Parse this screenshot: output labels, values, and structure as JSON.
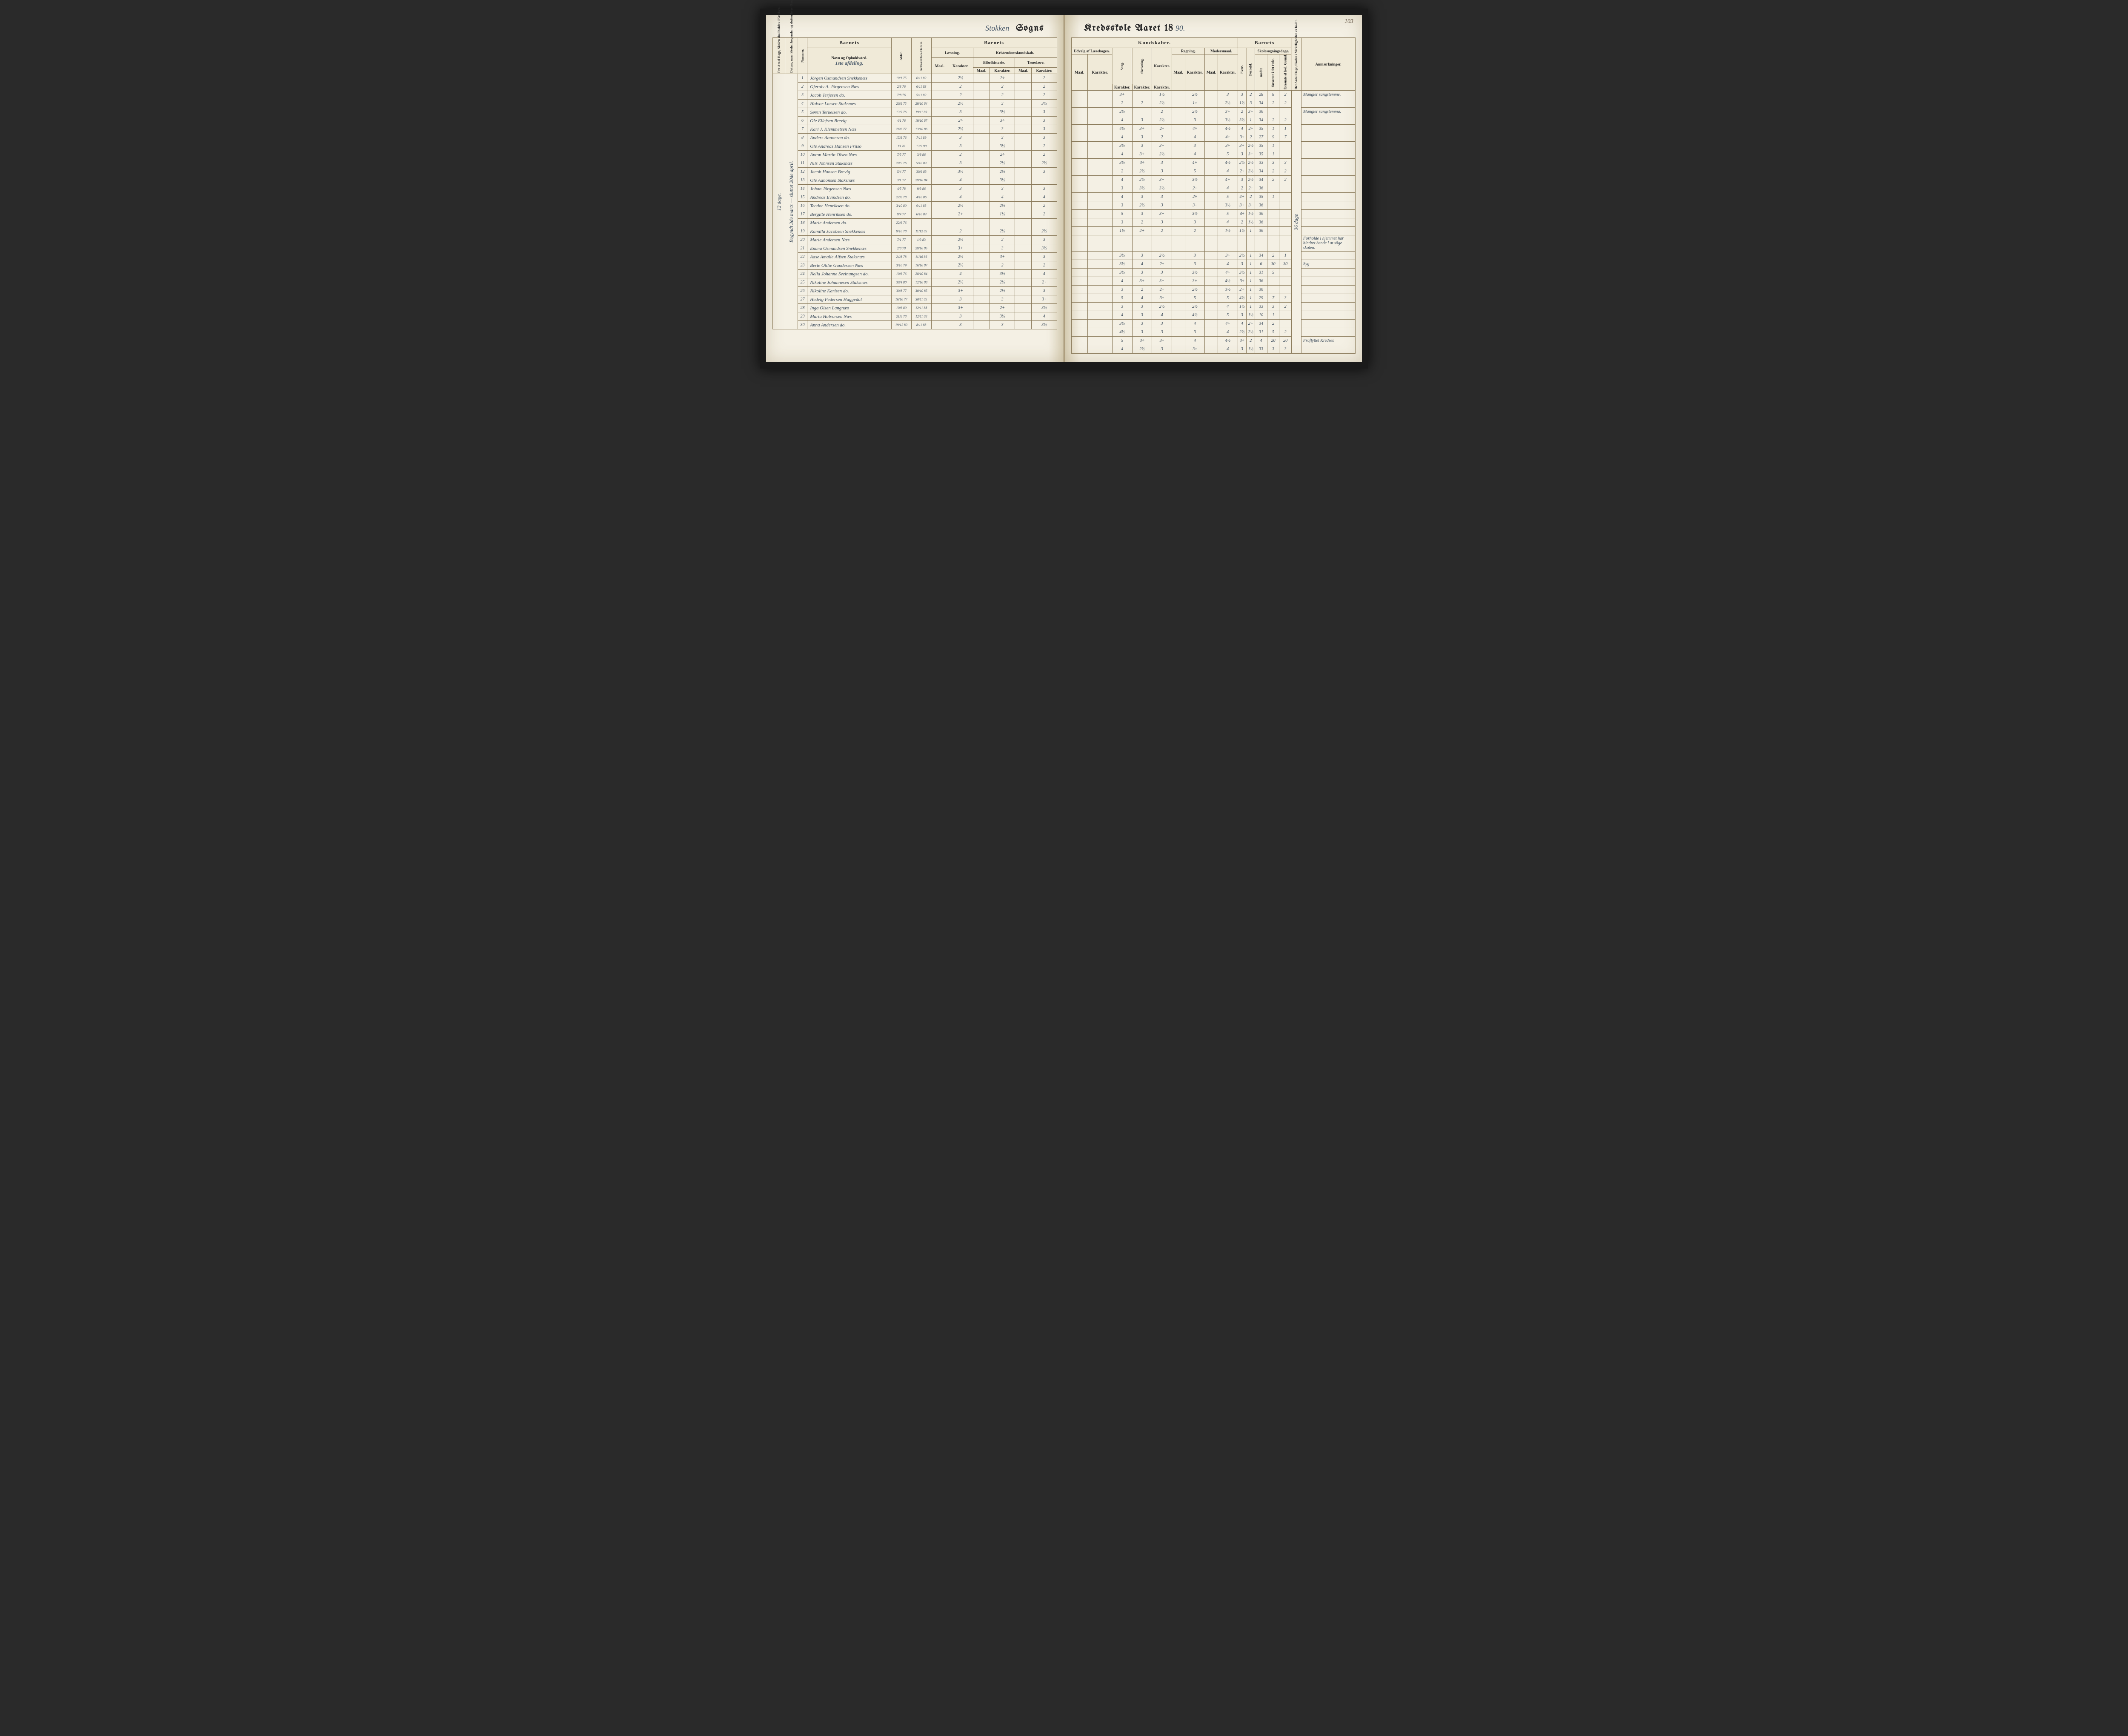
{
  "page_number": "103",
  "title_left_hand": "Stokken",
  "title_left_print": "Sogns",
  "title_right_print": "Kredsskole Aaret 18",
  "title_right_hand": "90.",
  "left_margin_text": "Begyndt 3de marts — sluttet 20de april.",
  "left_margin_text2": "12 dage.",
  "right_margin_text": "36 dage",
  "afdeling_label": "1ste afdeling.",
  "headers": {
    "antal_dage": "Det Antal Dage, Skolen skal holdes i Kredsen.",
    "datum_omgang": "Datum, naar Skolen begynder og slutter hver Omgang.",
    "nummer": "Nummer.",
    "barnets": "Barnets",
    "navn": "Navn og Opholdssted.",
    "alder": "Alder.",
    "indtr": "Indtrædelses-Datum.",
    "laesning": "Læsning.",
    "krist": "Kristendomskundskab.",
    "maal": "Maal.",
    "karakter": "Karakter.",
    "bibel": "Bibelhistorie.",
    "troes": "Troeslære.",
    "kundskaber": "Kundskaber.",
    "udvalg": "Udvalg af Læsebogen.",
    "sang": "Sang.",
    "skriv": "Skrivning.",
    "regning": "Regning.",
    "modersmaal": "Modersmaal.",
    "skolesogn": "Skolesøgningsdage.",
    "evne": "Evne.",
    "forhold": "Forhold.",
    "modte": "mødte",
    "forsomte_hele": "forsømte i det Hele.",
    "forsomte_lovl": "forsømte af lovl. Grund.",
    "antal_virk": "Det Antal Dage, Skolen i Virkeligheden er holdt.",
    "anm": "Anmærkninger."
  },
  "rows": [
    {
      "n": "1",
      "name": "Jörgen Osmundsen Snekkenæs",
      "al": "10/1 75",
      "ind": "6/11 82",
      "l_m": "",
      "l_k": "2½",
      "b_m": "",
      "b_k": "2÷",
      "t_m": "",
      "t_k": "2",
      "u_m": "",
      "u_k": "",
      "sa": "3+",
      "sk": "",
      "rk": "1½",
      "r_m": "",
      "r_k": "2½",
      "mm": "",
      "mk": "3",
      "ev": "3",
      "fo": "2",
      "md": "28",
      "f1": "8",
      "f2": "2",
      "anm": "Mangler sangstemme."
    },
    {
      "n": "2",
      "name": "Gjerulv A. Jörgensen Næs",
      "al": "2/3 76",
      "ind": "6/11 83",
      "l_m": "",
      "l_k": "2",
      "b_m": "",
      "b_k": "2",
      "t_m": "",
      "t_k": "2",
      "u_m": "",
      "u_k": "",
      "sa": "2",
      "sk": "2",
      "rk": "2½",
      "r_m": "",
      "r_k": "1÷",
      "mm": "",
      "mk": "2½",
      "ev": "1½",
      "fo": "3",
      "md": "34",
      "f1": "2",
      "f2": "2",
      "anm": ""
    },
    {
      "n": "3",
      "name": "Jacob Terjesen   do.",
      "al": "7/8 76",
      "ind": "5/11 82",
      "l_m": "",
      "l_k": "2",
      "b_m": "",
      "b_k": "2",
      "t_m": "",
      "t_k": "2",
      "u_m": "",
      "u_k": "",
      "sa": "2½",
      "sk": "",
      "rk": "2",
      "r_m": "",
      "r_k": "2½",
      "mm": "",
      "mk": "3+",
      "ev": "2",
      "fo": "3+",
      "md": "36",
      "f1": "",
      "f2": "",
      "anm": "Mangler sangstemma."
    },
    {
      "n": "4",
      "name": "Halvor Larsen Staksnæs",
      "al": "20/8 75",
      "ind": "29/10 84",
      "l_m": "",
      "l_k": "2½",
      "b_m": "",
      "b_k": "3",
      "t_m": "",
      "t_k": "3½",
      "u_m": "",
      "u_k": "",
      "sa": "4",
      "sk": "3",
      "rk": "2½",
      "r_m": "",
      "r_k": "3",
      "mm": "",
      "mk": "3½",
      "ev": "3½",
      "fo": "1",
      "md": "34",
      "f1": "2",
      "f2": "2",
      "anm": ""
    },
    {
      "n": "5",
      "name": "Søren Terkelsen   do.",
      "al": "13/3 76",
      "ind": "19/11 83",
      "l_m": "",
      "l_k": "3",
      "b_m": "",
      "b_k": "3½",
      "t_m": "",
      "t_k": "3",
      "u_m": "",
      "u_k": "",
      "sa": "4½",
      "sk": "3+",
      "rk": "2÷",
      "r_m": "",
      "r_k": "4÷",
      "mm": "",
      "mk": "4½",
      "ev": "4",
      "fo": "2÷",
      "md": "35",
      "f1": "1",
      "f2": "1",
      "anm": ""
    },
    {
      "n": "6",
      "name": "Ole Ellefsen Brevig",
      "al": "4/1 76",
      "ind": "19/10 87",
      "l_m": "",
      "l_k": "2÷",
      "b_m": "",
      "b_k": "3÷",
      "t_m": "",
      "t_k": "3",
      "u_m": "",
      "u_k": "",
      "sa": "4",
      "sk": "3",
      "rk": "2",
      "r_m": "",
      "r_k": "4",
      "mm": "",
      "mk": "4÷",
      "ev": "3÷",
      "fo": "2",
      "md": "27",
      "f1": "9",
      "f2": "7",
      "anm": ""
    },
    {
      "n": "7",
      "name": "Karl J. Klemmetsen Næs",
      "al": "26/6 77",
      "ind": "13/10 86",
      "l_m": "",
      "l_k": "2½",
      "b_m": "",
      "b_k": "3",
      "t_m": "",
      "t_k": "3",
      "u_m": "",
      "u_k": "",
      "sa": "3½",
      "sk": "3",
      "rk": "3+",
      "r_m": "",
      "r_k": "3",
      "mm": "",
      "mk": "3÷",
      "ev": "3+",
      "fo": "2½",
      "md": "35",
      "f1": "1",
      "f2": "",
      "anm": ""
    },
    {
      "n": "8",
      "name": "Anders Aanonsen   do.",
      "al": "15/8 76",
      "ind": "7/11 89",
      "l_m": "",
      "l_k": "3",
      "b_m": "",
      "b_k": "3",
      "t_m": "",
      "t_k": "3",
      "u_m": "",
      "u_k": "",
      "sa": "4",
      "sk": "3+",
      "rk": "2½",
      "r_m": "",
      "r_k": "4",
      "mm": "",
      "mk": "5",
      "ev": "3",
      "fo": "3+",
      "md": "35",
      "f1": "1",
      "f2": "",
      "anm": ""
    },
    {
      "n": "9",
      "name": "Ole Andreas Hansen Frilsö",
      "al": "13 76",
      "ind": "13/5 90",
      "l_m": "",
      "l_k": "3",
      "b_m": "",
      "b_k": "3½",
      "t_m": "",
      "t_k": "2",
      "u_m": "",
      "u_k": "",
      "sa": "3½",
      "sk": "3÷",
      "rk": "3",
      "r_m": "",
      "r_k": "4+",
      "mm": "",
      "mk": "4½",
      "ev": "2½",
      "fo": "2½",
      "md": "33",
      "f1": "3",
      "f2": "3",
      "anm": ""
    },
    {
      "n": "10",
      "name": "Anton Martin Olsen Næs",
      "al": "7/5 77",
      "ind": "3/8 86",
      "l_m": "",
      "l_k": "2",
      "b_m": "",
      "b_k": "2÷",
      "t_m": "",
      "t_k": "2",
      "u_m": "",
      "u_k": "",
      "sa": "2",
      "sk": "2½",
      "rk": "3",
      "r_m": "",
      "r_k": "5",
      "mm": "",
      "mk": "4",
      "ev": "2÷",
      "fo": "2½",
      "md": "34",
      "f1": "2",
      "f2": "2",
      "anm": ""
    },
    {
      "n": "11",
      "name": "Nils Johnsen Staksnæs",
      "al": "20/2 76",
      "ind": "5/10 83",
      "l_m": "",
      "l_k": "3",
      "b_m": "",
      "b_k": "2½",
      "t_m": "",
      "t_k": "2½",
      "u_m": "",
      "u_k": "",
      "sa": "4",
      "sk": "2½",
      "rk": "3+",
      "r_m": "",
      "r_k": "3½",
      "mm": "",
      "mk": "4+",
      "ev": "3",
      "fo": "2½",
      "md": "34",
      "f1": "2",
      "f2": "2",
      "anm": ""
    },
    {
      "n": "12",
      "name": "Jacob Hansen Brevig",
      "al": "5/4 77",
      "ind": "30/6 83",
      "l_m": "",
      "l_k": "3½",
      "b_m": "",
      "b_k": "2½",
      "t_m": "",
      "t_k": "3",
      "u_m": "",
      "u_k": "",
      "sa": "3",
      "sk": "3½",
      "rk": "3½",
      "r_m": "",
      "r_k": "2÷",
      "mm": "",
      "mk": "4",
      "ev": "2",
      "fo": "2÷",
      "md": "36",
      "f1": "",
      "f2": "",
      "anm": ""
    },
    {
      "n": "13",
      "name": "Ole Aanonsen Staksnæs",
      "al": "3/1 77",
      "ind": "29/10 84",
      "l_m": "",
      "l_k": "4",
      "b_m": "",
      "b_k": "3½",
      "t_m": "",
      "t_k": "",
      "u_m": "",
      "u_k": "",
      "sa": "4",
      "sk": "3",
      "rk": "3",
      "r_m": "",
      "r_k": "2÷",
      "mm": "",
      "mk": "5",
      "ev": "4+",
      "fo": "2",
      "md": "35",
      "f1": "1",
      "f2": "",
      "anm": ""
    },
    {
      "n": "14",
      "name": "Johan Jörgensen Næs",
      "al": "4/5 78",
      "ind": "9/3 86",
      "l_m": "",
      "l_k": "3",
      "b_m": "",
      "b_k": "3",
      "t_m": "",
      "t_k": "3",
      "u_m": "",
      "u_k": "",
      "sa": "3",
      "sk": "2½",
      "rk": "3",
      "r_m": "",
      "r_k": "3÷",
      "mm": "",
      "mk": "3½",
      "ev": "3+",
      "fo": "3÷",
      "md": "36",
      "f1": "",
      "f2": "",
      "anm": ""
    },
    {
      "n": "15",
      "name": "Andreas Evindsen   do.",
      "al": "27/6 78",
      "ind": "4/10 86",
      "l_m": "",
      "l_k": "4",
      "b_m": "",
      "b_k": "4",
      "t_m": "",
      "t_k": "4",
      "u_m": "",
      "u_k": "",
      "sa": "5",
      "sk": "3",
      "rk": "3+",
      "r_m": "",
      "r_k": "3½",
      "mm": "",
      "mk": "5",
      "ev": "4÷",
      "fo": "1½",
      "md": "36",
      "f1": "",
      "f2": "",
      "anm": ""
    },
    {
      "n": "16",
      "name": "Teodor Henriksen   do.",
      "al": "3/10 80",
      "ind": "9/11 88",
      "l_m": "",
      "l_k": "2½",
      "b_m": "",
      "b_k": "2½",
      "t_m": "",
      "t_k": "2",
      "u_m": "",
      "u_k": "",
      "sa": "3",
      "sk": "2",
      "rk": "3",
      "r_m": "",
      "r_k": "3",
      "mm": "",
      "mk": "4",
      "ev": "2",
      "fo": "1½",
      "md": "36",
      "f1": "",
      "f2": "",
      "anm": ""
    },
    {
      "n": "17",
      "name": "Bergitte Henriksen  do.",
      "al": "9/4 77",
      "ind": "6/10 83",
      "l_m": "",
      "l_k": "2+",
      "b_m": "",
      "b_k": "1½",
      "t_m": "",
      "t_k": "2",
      "u_m": "",
      "u_k": "",
      "sa": "1½",
      "sk": "2+",
      "rk": "2",
      "r_m": "",
      "r_k": "2",
      "mm": "",
      "mk": "1½",
      "ev": "1½",
      "fo": "1",
      "md": "36",
      "f1": "",
      "f2": "",
      "anm": ""
    },
    {
      "n": "18",
      "name": "Marie Andersen   do.",
      "al": "22/6 76",
      "ind": "",
      "l_m": "",
      "l_k": "",
      "b_m": "",
      "b_k": "",
      "t_m": "",
      "t_k": "",
      "u_m": "",
      "u_k": "",
      "sa": "",
      "sk": "",
      "rk": "",
      "r_m": "",
      "r_k": "",
      "mm": "",
      "mk": "",
      "ev": "",
      "fo": "",
      "md": "",
      "f1": "",
      "f2": "",
      "anm": "Forholde i hjemmet har hindret hende i at söge skolen."
    },
    {
      "n": "19",
      "name": "Kamilla Jacobsen Snekkenæs",
      "al": "9/10 78",
      "ind": "11/12 85",
      "l_m": "",
      "l_k": "2",
      "b_m": "",
      "b_k": "2½",
      "t_m": "",
      "t_k": "2½",
      "u_m": "",
      "u_k": "",
      "sa": "3½",
      "sk": "3",
      "rk": "2½",
      "r_m": "",
      "r_k": "3",
      "mm": "",
      "mk": "3÷",
      "ev": "2½",
      "fo": "1",
      "md": "34",
      "f1": "2",
      "f2": "1",
      "anm": ""
    },
    {
      "n": "20",
      "name": "Marie Andersen Næs",
      "al": "7/1 77",
      "ind": "1/3 83",
      "l_m": "",
      "l_k": "2½",
      "b_m": "",
      "b_k": "2",
      "t_m": "",
      "t_k": "3",
      "u_m": "",
      "u_k": "",
      "sa": "3½",
      "sk": "4",
      "rk": "2÷",
      "r_m": "",
      "r_k": "3",
      "mm": "",
      "mk": "4",
      "ev": "3",
      "fo": "1",
      "md": "6",
      "f1": "30",
      "f2": "30",
      "anm": "Syg"
    },
    {
      "n": "21",
      "name": "Emma Osmundsen Snekkenæs",
      "al": "2/8 78",
      "ind": "29/10 85",
      "l_m": "",
      "l_k": "3+",
      "b_m": "",
      "b_k": "3",
      "t_m": "",
      "t_k": "3½",
      "u_m": "",
      "u_k": "",
      "sa": "3½",
      "sk": "3",
      "rk": "3",
      "r_m": "",
      "r_k": "3½",
      "mm": "",
      "mk": "4÷",
      "ev": "3½",
      "fo": "1",
      "md": "31",
      "f1": "5",
      "f2": "",
      "anm": ""
    },
    {
      "n": "22",
      "name": "Aase Amalie Alfsen Staksnæs",
      "al": "24/8 78",
      "ind": "11/10 86",
      "l_m": "",
      "l_k": "2½",
      "b_m": "",
      "b_k": "3+",
      "t_m": "",
      "t_k": "3",
      "u_m": "",
      "u_k": "",
      "sa": "4",
      "sk": "3+",
      "rk": "3+",
      "r_m": "",
      "r_k": "3+",
      "mm": "",
      "mk": "4½",
      "ev": "3÷",
      "fo": "1",
      "md": "36",
      "f1": "",
      "f2": "",
      "anm": ""
    },
    {
      "n": "23",
      "name": "Berte Otilie Gundersen Næs",
      "al": "3/10 79",
      "ind": "16/10 87",
      "l_m": "",
      "l_k": "2½",
      "b_m": "",
      "b_k": "2",
      "t_m": "",
      "t_k": "2",
      "u_m": "",
      "u_k": "",
      "sa": "3",
      "sk": "2",
      "rk": "2÷",
      "r_m": "",
      "r_k": "2½",
      "mm": "",
      "mk": "3½",
      "ev": "2+",
      "fo": "1",
      "md": "36",
      "f1": "",
      "f2": "",
      "anm": ""
    },
    {
      "n": "24",
      "name": "Nella Johanne Sveinungsen do.",
      "al": "10/6 76",
      "ind": "28/10 84",
      "l_m": "",
      "l_k": "4",
      "b_m": "",
      "b_k": "3½",
      "t_m": "",
      "t_k": "4",
      "u_m": "",
      "u_k": "",
      "sa": "5",
      "sk": "4",
      "rk": "3÷",
      "r_m": "",
      "r_k": "5",
      "mm": "",
      "mk": "5",
      "ev": "4½",
      "fo": "1",
      "md": "29",
      "f1": "7",
      "f2": "3",
      "anm": ""
    },
    {
      "n": "25",
      "name": "Nikoline Johannesen Staksnæs",
      "al": "30/4 80",
      "ind": "12/10 88",
      "l_m": "",
      "l_k": "2½",
      "b_m": "",
      "b_k": "2½",
      "t_m": "",
      "t_k": "2÷",
      "u_m": "",
      "u_k": "",
      "sa": "3",
      "sk": "3",
      "rk": "2½",
      "r_m": "",
      "r_k": "2½",
      "mm": "",
      "mk": "4",
      "ev": "1½",
      "fo": "1",
      "md": "33",
      "f1": "3",
      "f2": "2",
      "anm": ""
    },
    {
      "n": "26",
      "name": "Nikoline Karlsen   do.",
      "al": "30/8 77",
      "ind": "30/10 85",
      "l_m": "",
      "l_k": "3+",
      "b_m": "",
      "b_k": "2½",
      "t_m": "",
      "t_k": "3",
      "u_m": "",
      "u_k": "",
      "sa": "4",
      "sk": "3",
      "rk": "4",
      "r_m": "",
      "r_k": "4½",
      "mm": "",
      "mk": "5",
      "ev": "3",
      "fo": "1½",
      "md": "10",
      "f1": "1",
      "f2": "",
      "anm": ""
    },
    {
      "n": "27",
      "name": "Hedvig Pedersen Haggedal",
      "al": "16/10 77",
      "ind": "30/11 85",
      "l_m": "",
      "l_k": "3",
      "b_m": "",
      "b_k": "3",
      "t_m": "",
      "t_k": "3÷",
      "u_m": "",
      "u_k": "",
      "sa": "3½",
      "sk": "3",
      "rk": "3",
      "r_m": "",
      "r_k": "4",
      "mm": "",
      "mk": "4÷",
      "ev": "4",
      "fo": "2+",
      "md": "34",
      "f1": "2",
      "f2": "",
      "anm": ""
    },
    {
      "n": "28",
      "name": "Inga Olsen Langnæs",
      "al": "10/6 80",
      "ind": "12/11 88",
      "l_m": "",
      "l_k": "3+",
      "b_m": "",
      "b_k": "2+",
      "t_m": "",
      "t_k": "3½",
      "u_m": "",
      "u_k": "",
      "sa": "4½",
      "sk": "3",
      "rk": "3",
      "r_m": "",
      "r_k": "3",
      "mm": "",
      "mk": "4",
      "ev": "2½",
      "fo": "2½",
      "md": "31",
      "f1": "5",
      "f2": "2",
      "anm": ""
    },
    {
      "n": "29",
      "name": "Marta Halvorsen Næs",
      "al": "21/8 78",
      "ind": "12/11 88",
      "l_m": "",
      "l_k": "3",
      "b_m": "",
      "b_k": "3½",
      "t_m": "",
      "t_k": "4",
      "u_m": "",
      "u_k": "",
      "sa": "5",
      "sk": "3÷",
      "rk": "3÷",
      "r_m": "",
      "r_k": "4",
      "mm": "",
      "mk": "4½",
      "ev": "3÷",
      "fo": "2",
      "md": "4",
      "f1": "20",
      "f2": "20",
      "anm": "Fraflyttet Kredsen"
    },
    {
      "n": "30",
      "name": "Anna Andersen   do.",
      "al": "19/12 80",
      "ind": "8/11 88",
      "l_m": "",
      "l_k": "3",
      "b_m": "",
      "b_k": "3",
      "t_m": "",
      "t_k": "3½",
      "u_m": "",
      "u_k": "",
      "sa": "4",
      "sk": "2½",
      "rk": "3",
      "r_m": "",
      "r_k": "3÷",
      "mm": "",
      "mk": "4",
      "ev": "3",
      "fo": "1½",
      "md": "33",
      "f1": "3",
      "f2": "3",
      "anm": ""
    }
  ]
}
